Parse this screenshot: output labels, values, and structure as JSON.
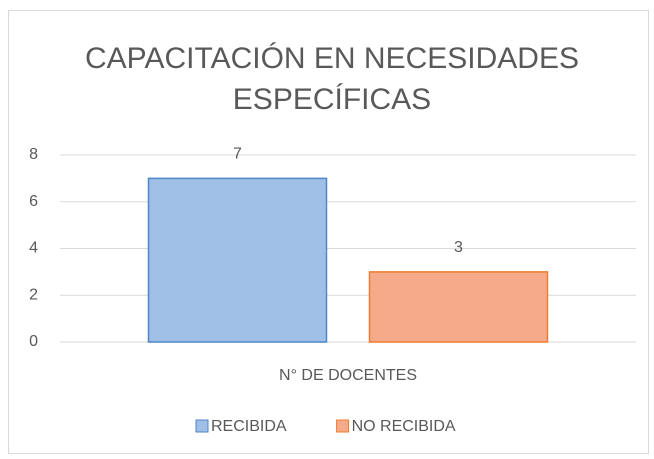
{
  "chart_data": {
    "type": "bar",
    "title": "CAPACITACIÓN EN NECESIDADES ESPECÍFICAS",
    "categories": [
      "N° DE DOCENTES"
    ],
    "series": [
      {
        "name": "RECIBIDA",
        "color": "#9fbfe7",
        "edge_color": "#4f86c6",
        "values": [
          7
        ]
      },
      {
        "name": "NO RECIBIDA",
        "color": "#f5ab8a",
        "edge_color": "#ed7d31",
        "values": [
          3
        ]
      }
    ],
    "ylim": [
      0,
      8
    ],
    "yticks": [
      0,
      2,
      4,
      6,
      8
    ],
    "grid": true,
    "legend": "bottom"
  }
}
